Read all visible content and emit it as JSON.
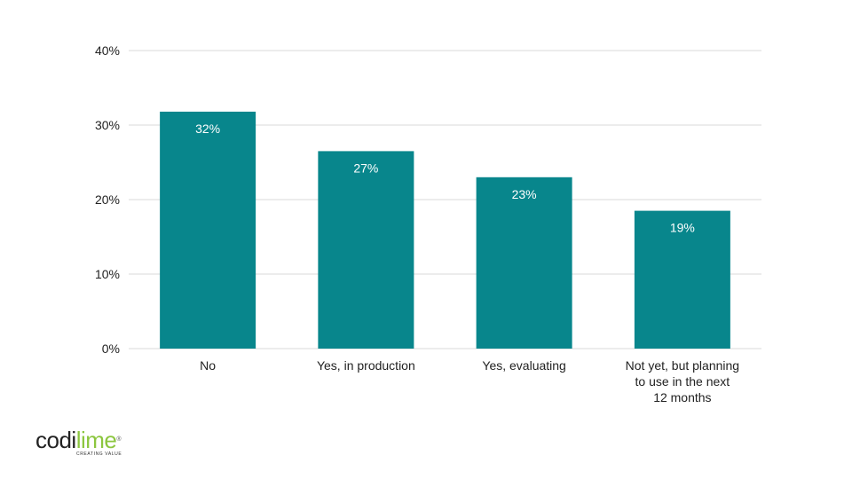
{
  "chart_data": {
    "type": "bar",
    "categories": [
      "No",
      "Yes, in production",
      "Yes, evaluating",
      "Not yet, but planning to use in the next 12 months"
    ],
    "category_lines": [
      [
        "No"
      ],
      [
        "Yes, in production"
      ],
      [
        "Yes, evaluating"
      ],
      [
        "Not yet, but planning",
        "to use in the next",
        "12 months"
      ]
    ],
    "values": [
      31.8,
      26.5,
      23,
      18.5
    ],
    "data_labels": [
      "32%",
      "27%",
      "23%",
      "19%"
    ],
    "ylim": [
      0,
      40
    ],
    "yticks": [
      0,
      10,
      20,
      30,
      40
    ],
    "ytick_labels": [
      "0%",
      "10%",
      "20%",
      "30%",
      "40%"
    ],
    "bar_color": "#08868c",
    "grid_color": "#d9d9d9",
    "grid": true,
    "title": "",
    "xlabel": "",
    "ylabel": ""
  },
  "logo": {
    "part1": "codi",
    "part2": "lime",
    "registered": "®",
    "tagline": "CREATING VALUE"
  }
}
